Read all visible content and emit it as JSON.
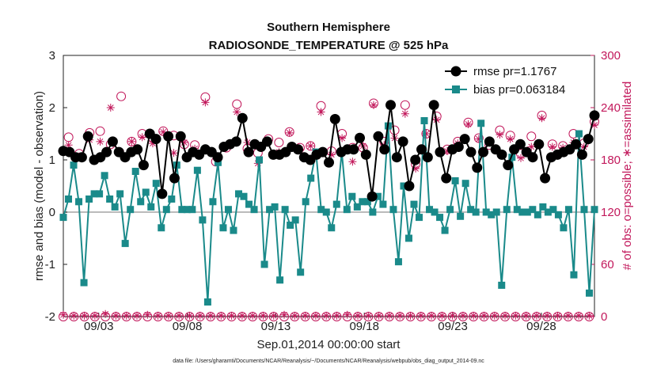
{
  "chart_data": {
    "type": "line",
    "title": "Southern Hemisphere",
    "subtitle": "RADIOSONDE_TEMPERATURE @ 525 hPa",
    "xlabel": "Sep.01,2014 00:00:00 start",
    "ylabel": "rmse and bias (model - observation)",
    "ylabel_right": "# of obs: o=possible; ∗=assimilated",
    "footnote": "data file: /Users/gharamti/Documents/NCAR/Reanalysis/~/Documents/NCAR/Reanalysis/webpub/obs_diag_output_2014-09.nc",
    "xlim": [
      1.0,
      31.0
    ],
    "ylim": [
      -2,
      3
    ],
    "ylim_right": [
      0,
      300
    ],
    "x_ticks": [
      3,
      8,
      13,
      18,
      23,
      28
    ],
    "x_tick_labels": [
      "09/03",
      "09/08",
      "09/13",
      "09/18",
      "09/23",
      "09/28"
    ],
    "y_ticks": [
      -2,
      -1,
      0,
      1,
      2,
      3
    ],
    "y_tick_labels": [
      "-2",
      "-1",
      "0",
      "1",
      "2",
      "3"
    ],
    "y_ticks_right": [
      0,
      60,
      120,
      180,
      240,
      300
    ],
    "y_tick_labels_right": [
      "0",
      "60",
      "120",
      "180",
      "240",
      "300"
    ],
    "zero_line": 0,
    "colors": {
      "rmse": "#000000",
      "bias": "#1a8a8a",
      "obs": "#c2185b",
      "zero": "#bbbbbb"
    },
    "series": [
      {
        "name": "rmse",
        "legend_label": "rmse pr=1.1767",
        "axis": "left",
        "values": [
          1.17,
          1.15,
          1.05,
          1.05,
          1.45,
          1.0,
          1.05,
          1.15,
          1.35,
          1.15,
          1.05,
          1.15,
          1.2,
          0.9,
          1.5,
          1.4,
          0.35,
          1.45,
          0.65,
          1.45,
          1.05,
          1.15,
          1.1,
          1.2,
          1.15,
          1.05,
          1.25,
          1.3,
          1.35,
          1.8,
          1.15,
          1.3,
          1.25,
          1.35,
          1.1,
          1.1,
          1.15,
          1.25,
          1.2,
          1.05,
          1.0,
          1.1,
          1.15,
          0.95,
          1.78,
          1.15,
          1.2,
          1.2,
          1.42,
          1.1,
          0.3,
          1.45,
          1.2,
          2.05,
          1.05,
          1.35,
          0.5,
          1.0,
          1.2,
          1.05,
          2.05,
          1.15,
          0.65,
          1.2,
          1.25,
          1.4,
          1.15,
          0.85,
          1.15,
          1.35,
          1.2,
          1.1,
          0.9,
          1.2,
          1.3,
          1.15,
          1.05,
          1.3,
          0.65,
          1.05,
          1.1,
          1.15,
          1.2,
          1.3,
          1.1,
          1.4,
          1.85
        ]
      },
      {
        "name": "bias",
        "legend_label": "bias pr=0.063184",
        "axis": "left",
        "values": [
          -0.1,
          0.25,
          0.9,
          0.2,
          -1.35,
          0.25,
          0.35,
          0.35,
          0.7,
          0.25,
          0.1,
          0.35,
          -0.6,
          0.05,
          0.78,
          0.2,
          0.38,
          0.1,
          0.55,
          -0.3,
          0.05,
          0.25,
          0.9,
          0.05,
          0.05,
          0.05,
          0.8,
          -0.15,
          -1.72,
          0.2,
          0.95,
          -0.3,
          0.05,
          -0.35,
          0.35,
          0.3,
          0.15,
          0.05,
          1.0,
          -1.0,
          0.05,
          0.1,
          -1.3,
          0.05,
          -0.25,
          -0.15,
          -1.15,
          0.2,
          0.65,
          1.15,
          0.05,
          0.0,
          -0.3,
          0.15,
          1.15,
          0.05,
          0.3,
          0.1,
          0.2,
          0.2,
          0.0,
          0.3,
          0.15,
          1.65,
          0.05,
          -0.95,
          0.5,
          -0.5,
          0.15,
          -0.1,
          1.75,
          0.05,
          0.0,
          -0.1,
          -0.35,
          0.05,
          0.6,
          -0.08,
          0.55,
          0.05,
          0.0,
          1.7,
          0.0,
          -0.05,
          0.0,
          -1.4,
          0.05,
          1.05,
          0.05,
          0.0,
          0.0,
          0.05,
          -0.05,
          0.1,
          0.0,
          0.05,
          -0.05,
          -0.3,
          0.05,
          -1.2,
          1.5,
          0.05,
          -1.55,
          0.05
        ]
      },
      {
        "name": "obs_possible",
        "legend_label": "",
        "axis": "right",
        "marker": "circle",
        "values": [
          0,
          206,
          0,
          187,
          0,
          211,
          0,
          213,
          0,
          198,
          0,
          253,
          0,
          201,
          0,
          210,
          0,
          205,
          0,
          213,
          0,
          208,
          0,
          198,
          0,
          197,
          0,
          252,
          0,
          178,
          0,
          194,
          0,
          244,
          0,
          193,
          0,
          188,
          0,
          204,
          0,
          200,
          0,
          212,
          0,
          194,
          0,
          196,
          0,
          242,
          0,
          190,
          0,
          210,
          0,
          194,
          0,
          194,
          0,
          245,
          0,
          201,
          0,
          214,
          0,
          243,
          0,
          175,
          0,
          210,
          0,
          230,
          0,
          192,
          0,
          201,
          0,
          223,
          0,
          205,
          0,
          197,
          0,
          214,
          0,
          208,
          0,
          187,
          0,
          207,
          0,
          231,
          0,
          198,
          0,
          196,
          0,
          210,
          0,
          199,
          0,
          224
        ]
      },
      {
        "name": "obs_assimilated",
        "legend_label": "",
        "axis": "right",
        "marker": "star",
        "values": [
          2,
          197,
          1,
          184,
          1,
          203,
          1,
          201,
          3,
          240,
          1,
          188,
          1,
          201,
          1,
          206,
          2,
          199,
          1,
          212,
          1,
          188,
          1,
          200,
          1,
          193,
          1,
          246,
          1,
          185,
          1,
          196,
          1,
          235,
          1,
          200,
          1,
          176,
          1,
          201,
          1,
          189,
          2,
          211,
          1,
          192,
          1,
          196,
          1,
          235,
          1,
          186,
          1,
          205,
          2,
          178,
          1,
          196,
          1,
          243,
          1,
          197,
          1,
          205,
          1,
          233,
          1,
          170,
          1,
          210,
          1,
          226,
          1,
          190,
          1,
          199,
          1,
          221,
          1,
          204,
          1,
          201,
          1,
          209,
          1,
          204,
          1,
          182,
          1,
          195,
          1,
          228,
          1,
          195,
          1,
          194,
          1,
          200,
          1,
          195,
          1,
          220
        ]
      }
    ]
  }
}
